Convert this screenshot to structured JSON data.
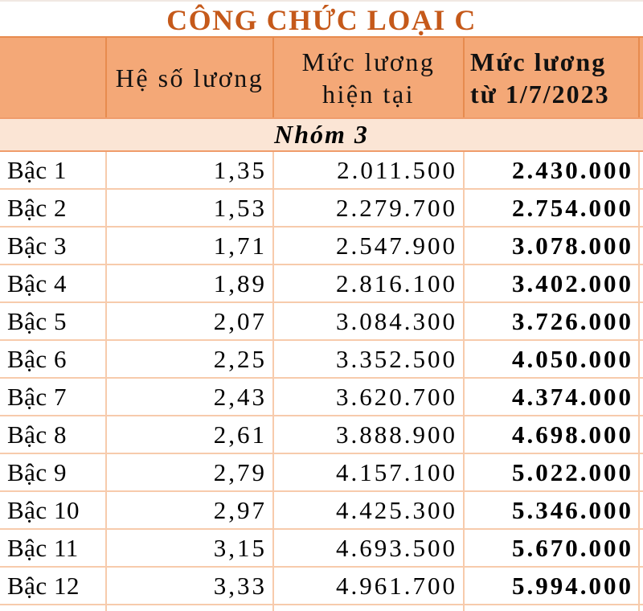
{
  "title": "CÔNG CHỨC LOẠI C",
  "header": {
    "col1": "",
    "col2": "Hệ số lương",
    "col3_line1": "Mức lương",
    "col3_line2": "hiện tại",
    "col4_line1": "Mức lương",
    "col4_line2": "từ 1/7/2023"
  },
  "group_label": "Nhóm 3",
  "rows": [
    {
      "level": "Bậc 1",
      "coefficient": "1,35",
      "current_salary": "2.011.500",
      "new_salary": "2.430.000"
    },
    {
      "level": "Bậc 2",
      "coefficient": "1,53",
      "current_salary": "2.279.700",
      "new_salary": "2.754.000"
    },
    {
      "level": "Bậc 3",
      "coefficient": "1,71",
      "current_salary": "2.547.900",
      "new_salary": "3.078.000"
    },
    {
      "level": "Bậc 4",
      "coefficient": "1,89",
      "current_salary": "2.816.100",
      "new_salary": "3.402.000"
    },
    {
      "level": "Bậc 5",
      "coefficient": "2,07",
      "current_salary": "3.084.300",
      "new_salary": "3.726.000"
    },
    {
      "level": "Bậc 6",
      "coefficient": "2,25",
      "current_salary": "3.352.500",
      "new_salary": "4.050.000"
    },
    {
      "level": "Bậc 7",
      "coefficient": "2,43",
      "current_salary": "3.620.700",
      "new_salary": "4.374.000"
    },
    {
      "level": "Bậc 8",
      "coefficient": "2,61",
      "current_salary": "3.888.900",
      "new_salary": "4.698.000"
    },
    {
      "level": "Bậc 9",
      "coefficient": "2,79",
      "current_salary": "4.157.100",
      "new_salary": "5.022.000"
    },
    {
      "level": "Bậc 10",
      "coefficient": "2,97",
      "current_salary": "4.425.300",
      "new_salary": "5.346.000"
    },
    {
      "level": "Bậc 11",
      "coefficient": "3,15",
      "current_salary": "4.693.500",
      "new_salary": "5.670.000"
    },
    {
      "level": "Bậc 12",
      "coefficient": "3,33",
      "current_salary": "4.961.700",
      "new_salary": "5.994.000"
    }
  ],
  "colors": {
    "title_text": "#C5591A",
    "header_bg": "#F4A877",
    "header_border": "#E78B4F",
    "group_bg": "#FBE5D5",
    "group_border": "#F09C6B",
    "data_border": "#F7CBAC",
    "row_bg": "#FFFFFF",
    "text": "#000000"
  },
  "chart_data": {
    "type": "table",
    "title": "CÔNG CHỨC LOẠI C",
    "group": "Nhóm 3",
    "columns": [
      "",
      "Hệ số lương",
      "Mức lương hiện tại",
      "Mức lương từ 1/7/2023"
    ],
    "rows": [
      [
        "Bậc 1",
        "1,35",
        "2.011.500",
        "2.430.000"
      ],
      [
        "Bậc 2",
        "1,53",
        "2.279.700",
        "2.754.000"
      ],
      [
        "Bậc 3",
        "1,71",
        "2.547.900",
        "3.078.000"
      ],
      [
        "Bậc 4",
        "1,89",
        "2.816.100",
        "3.402.000"
      ],
      [
        "Bậc 5",
        "2,07",
        "3.084.300",
        "3.726.000"
      ],
      [
        "Bậc 6",
        "2,25",
        "3.352.500",
        "4.050.000"
      ],
      [
        "Bậc 7",
        "2,43",
        "3.620.700",
        "4.374.000"
      ],
      [
        "Bậc 8",
        "2,61",
        "3.888.900",
        "4.698.000"
      ],
      [
        "Bậc 9",
        "2,79",
        "4.157.100",
        "5.022.000"
      ],
      [
        "Bậc 10",
        "2,97",
        "4.425.300",
        "5.346.000"
      ],
      [
        "Bậc 11",
        "3,15",
        "4.693.500",
        "5.670.000"
      ],
      [
        "Bậc 12",
        "3,33",
        "4.961.700",
        "5.994.000"
      ]
    ]
  }
}
